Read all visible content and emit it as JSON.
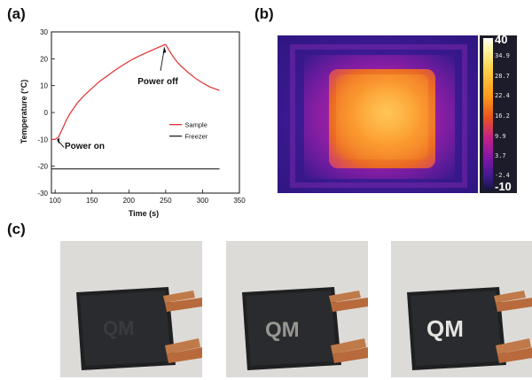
{
  "panels": {
    "a": "(a)",
    "b": "(b)",
    "c": "(c)"
  },
  "chart_data": {
    "type": "line",
    "xlabel": "Time (s)",
    "ylabel": "Temperature (°C)",
    "xlim": [
      95,
      350
    ],
    "ylim": [
      -30,
      30
    ],
    "xticks": [
      100,
      150,
      200,
      250,
      300,
      350
    ],
    "yticks": [
      -30,
      -20,
      -10,
      0,
      10,
      20,
      30
    ],
    "series": [
      {
        "name": "Sample",
        "color": "#e03030",
        "x": [
          95,
          100,
          105,
          110,
          115,
          120,
          125,
          130,
          140,
          150,
          160,
          170,
          180,
          190,
          200,
          210,
          220,
          230,
          240,
          245,
          248,
          250,
          255,
          260,
          265,
          270,
          280,
          290,
          300,
          310,
          320,
          323
        ],
        "y": [
          -10,
          -10,
          -9,
          -6,
          -3,
          -0.5,
          1.5,
          3.5,
          6.5,
          9,
          11.5,
          13.5,
          15.5,
          17.3,
          19,
          20.5,
          21.8,
          23,
          24.2,
          24.8,
          25.2,
          25.3,
          23,
          20.8,
          19,
          17.5,
          15,
          12.8,
          11,
          9.5,
          8.5,
          8.2
        ]
      },
      {
        "name": "Freezer",
        "color": "#222222",
        "x": [
          95,
          150,
          200,
          250,
          300,
          323
        ],
        "y": [
          -21,
          -21,
          -21,
          -21,
          -21,
          -21
        ]
      }
    ],
    "annotations": [
      {
        "text": "Power off",
        "x": 235,
        "y": 14
      },
      {
        "text": "Power on",
        "x": 117,
        "y": -13
      }
    ],
    "legend": "lower-right"
  },
  "thermal": {
    "scale_max": "40",
    "scale_min": "-10",
    "ticks": [
      "34.9",
      "28.7",
      "22.4",
      "16.2",
      "9.9",
      "3.7",
      "-2.4"
    ]
  },
  "photos": [
    {
      "caption": ""
    },
    {
      "caption": ""
    },
    {
      "caption": ""
    }
  ]
}
